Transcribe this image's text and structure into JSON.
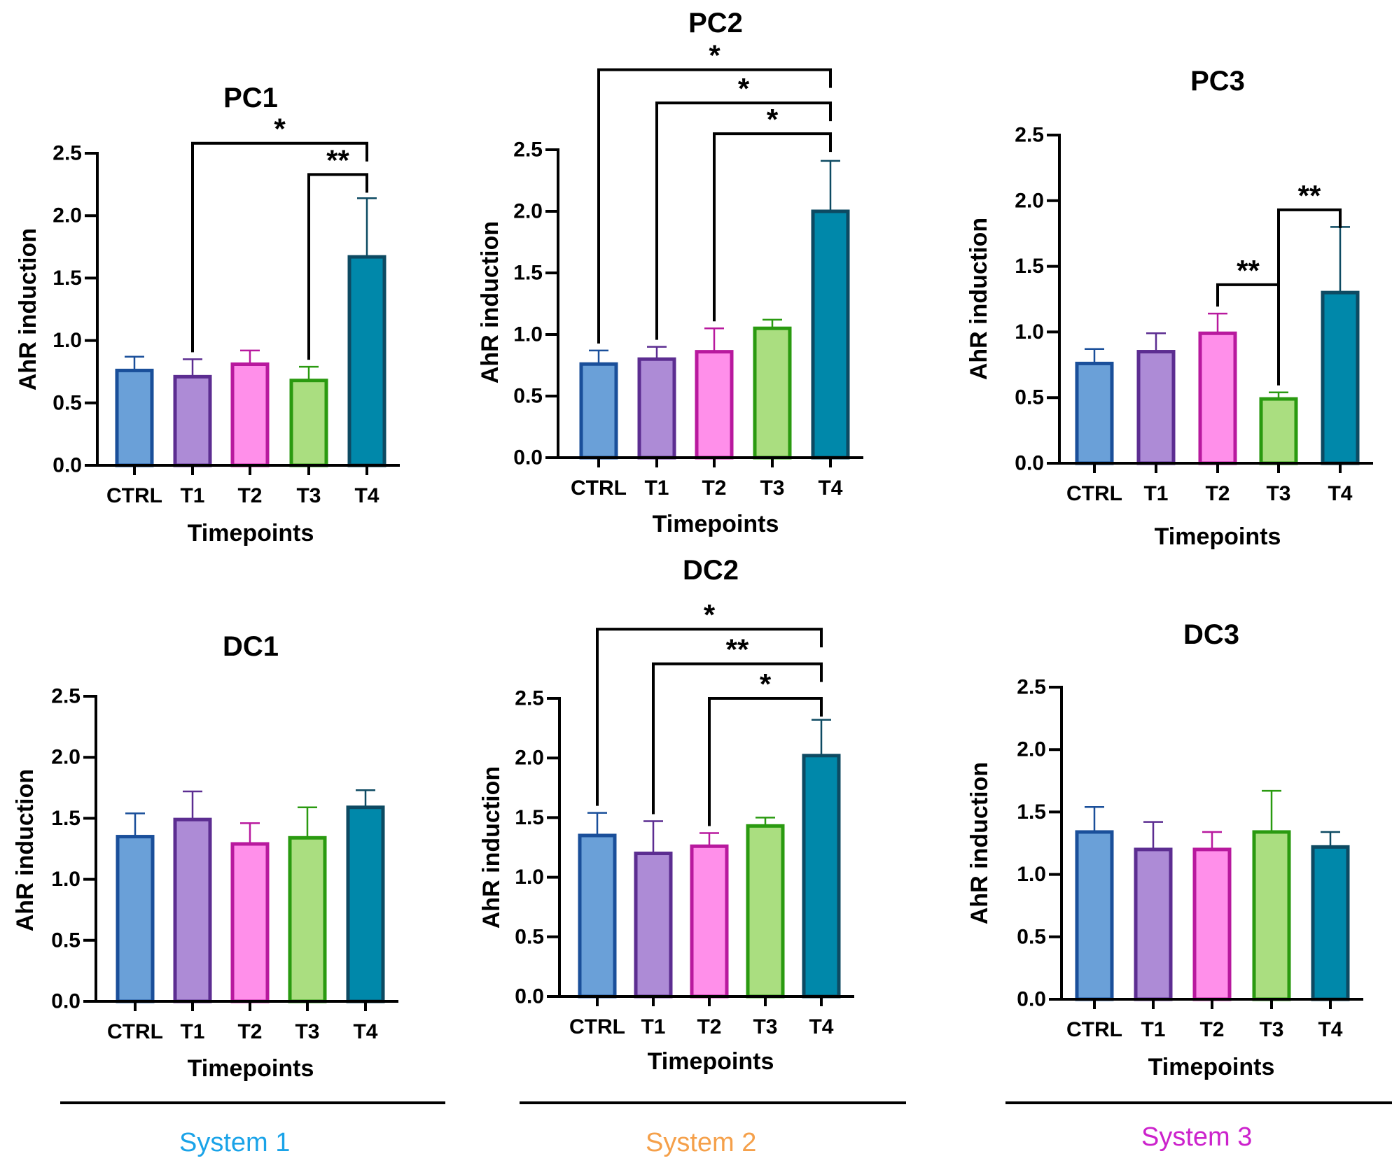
{
  "colors": {
    "fills": [
      "#6aa0d8",
      "#ad8bd6",
      "#ff8fea",
      "#aade80",
      "#0088aa"
    ],
    "edges": [
      "#1a4f9a",
      "#5c2d91",
      "#b8199e",
      "#2a9a10",
      "#0d4a62"
    ],
    "system_labels": [
      "#1aa3e8",
      "#f5a04a",
      "#cc22cc"
    ]
  },
  "chart_data": [
    {
      "type": "bar",
      "title": "PC1",
      "xlabel": "Timepoints",
      "ylabel": "AhR induction",
      "ylim": [
        0,
        2.5
      ],
      "yticks": [
        "0.0",
        "0.5",
        "1.0",
        "1.5",
        "2.0",
        "2.5"
      ],
      "categories": [
        "CTRL",
        "T1",
        "T2",
        "T3",
        "T4"
      ],
      "values": [
        0.76,
        0.71,
        0.81,
        0.68,
        1.67
      ],
      "errors": [
        0.11,
        0.14,
        0.11,
        0.11,
        0.47
      ],
      "significance": [
        {
          "from": 1,
          "to": 4,
          "y": 2.58,
          "label": "*"
        },
        {
          "from": 3,
          "to": 4,
          "y": 2.33,
          "label": "**"
        }
      ]
    },
    {
      "type": "bar",
      "title": "PC2",
      "xlabel": "Timepoints",
      "ylabel": "AhR induction",
      "ylim": [
        0,
        2.5
      ],
      "yticks": [
        "0.0",
        "0.5",
        "1.0",
        "1.5",
        "2.0",
        "2.5"
      ],
      "categories": [
        "CTRL",
        "T1",
        "T2",
        "T3",
        "T4"
      ],
      "values": [
        0.76,
        0.8,
        0.86,
        1.05,
        2.0
      ],
      "errors": [
        0.11,
        0.1,
        0.19,
        0.07,
        0.41
      ],
      "significance": [
        {
          "from": 0,
          "to": 4,
          "y": 3.15,
          "label": "*"
        },
        {
          "from": 1,
          "to": 4,
          "y": 2.88,
          "label": "*"
        },
        {
          "from": 2,
          "to": 4,
          "y": 2.63,
          "label": "*"
        }
      ]
    },
    {
      "type": "bar",
      "title": "PC3",
      "xlabel": "Timepoints",
      "ylabel": "AhR induction",
      "ylim": [
        0,
        2.5
      ],
      "yticks": [
        "0.0",
        "0.5",
        "1.0",
        "1.5",
        "2.0",
        "2.5"
      ],
      "categories": [
        "CTRL",
        "T1",
        "T2",
        "T3",
        "T4"
      ],
      "values": [
        0.76,
        0.85,
        0.99,
        0.49,
        1.3
      ],
      "errors": [
        0.11,
        0.14,
        0.15,
        0.05,
        0.5
      ],
      "significance": [
        {
          "from": 2,
          "to": 3,
          "y": 1.36,
          "label": "**"
        },
        {
          "from": 3,
          "to": 4,
          "y": 1.93,
          "label": "**"
        }
      ]
    },
    {
      "type": "bar",
      "title": "DC1",
      "xlabel": "Timepoints",
      "ylabel": "AhR induction",
      "ylim": [
        0,
        2.5
      ],
      "yticks": [
        "0.0",
        "0.5",
        "1.0",
        "1.5",
        "2.0",
        "2.5"
      ],
      "categories": [
        "CTRL",
        "T1",
        "T2",
        "T3",
        "T4"
      ],
      "values": [
        1.35,
        1.49,
        1.29,
        1.34,
        1.59
      ],
      "errors": [
        0.19,
        0.23,
        0.17,
        0.25,
        0.14
      ],
      "significance": []
    },
    {
      "type": "bar",
      "title": "DC2",
      "xlabel": "Timepoints",
      "ylabel": "AhR induction",
      "ylim": [
        0,
        2.5
      ],
      "yticks": [
        "0.0",
        "0.5",
        "1.0",
        "1.5",
        "2.0",
        "2.5"
      ],
      "categories": [
        "CTRL",
        "T1",
        "T2",
        "T3",
        "T4"
      ],
      "values": [
        1.35,
        1.2,
        1.26,
        1.43,
        2.02
      ],
      "errors": [
        0.19,
        0.27,
        0.11,
        0.07,
        0.3
      ],
      "significance": [
        {
          "from": 0,
          "to": 4,
          "y": 3.08,
          "label": "*"
        },
        {
          "from": 1,
          "to": 4,
          "y": 2.79,
          "label": "**"
        },
        {
          "from": 2,
          "to": 4,
          "y": 2.5,
          "label": "*"
        }
      ]
    },
    {
      "type": "bar",
      "title": "DC3",
      "xlabel": "Timepoints",
      "ylabel": "AhR induction",
      "ylim": [
        0,
        2.5
      ],
      "yticks": [
        "0.0",
        "0.5",
        "1.0",
        "1.5",
        "2.0",
        "2.5"
      ],
      "categories": [
        "CTRL",
        "T1",
        "T2",
        "T3",
        "T4"
      ],
      "values": [
        1.34,
        1.2,
        1.2,
        1.34,
        1.22
      ],
      "errors": [
        0.2,
        0.22,
        0.14,
        0.33,
        0.12
      ],
      "significance": []
    }
  ],
  "systems": [
    {
      "label": "System 1"
    },
    {
      "label": "System 2"
    },
    {
      "label": "System 3"
    }
  ]
}
